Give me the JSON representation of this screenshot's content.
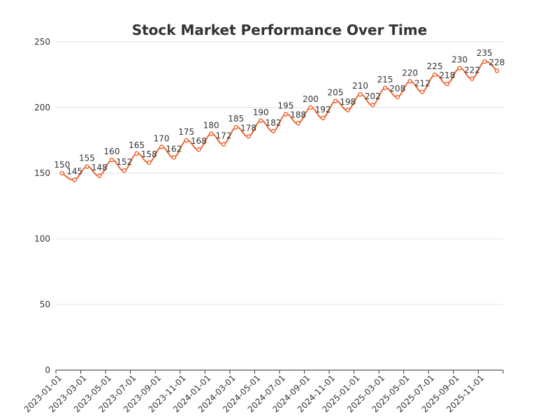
{
  "chart_data": {
    "type": "line",
    "title": "Stock Market Performance Over Time",
    "xlabel": "",
    "ylabel": "",
    "ylim": [
      0,
      250
    ],
    "yticks": [
      0,
      50,
      100,
      150,
      200,
      250
    ],
    "grid": true,
    "legend": "none",
    "line_color": "#ee6633",
    "x": [
      "2023-01-01",
      "2023-02-01",
      "2023-03-01",
      "2023-04-01",
      "2023-05-01",
      "2023-06-01",
      "2023-07-01",
      "2023-08-01",
      "2023-09-01",
      "2023-10-01",
      "2023-11-01",
      "2023-12-01",
      "2024-01-01",
      "2024-02-01",
      "2024-03-01",
      "2024-04-01",
      "2024-05-01",
      "2024-06-01",
      "2024-07-01",
      "2024-08-01",
      "2024-09-01",
      "2024-10-01",
      "2024-11-01",
      "2024-12-01",
      "2025-01-01",
      "2025-02-01",
      "2025-03-01",
      "2025-04-01",
      "2025-05-01",
      "2025-06-01",
      "2025-07-01",
      "2025-08-01",
      "2025-09-01",
      "2025-10-01",
      "2025-11-01",
      "2025-12-01"
    ],
    "xtick_labels": [
      "2023-01-01",
      "2023-03-01",
      "2023-05-01",
      "2023-07-01",
      "2023-09-01",
      "2023-11-01",
      "2024-01-01",
      "2024-03-01",
      "2024-05-01",
      "2024-07-01",
      "2024-09-01",
      "2024-11-01",
      "2025-01-01",
      "2025-03-01",
      "2025-05-01",
      "2025-07-01",
      "2025-09-01",
      "2025-11-01"
    ],
    "values": [
      150,
      145,
      155,
      148,
      160,
      152,
      165,
      158,
      170,
      162,
      175,
      168,
      180,
      172,
      185,
      178,
      190,
      182,
      195,
      188,
      200,
      192,
      205,
      198,
      210,
      202,
      215,
      208,
      220,
      212,
      225,
      218,
      230,
      222,
      235,
      228
    ]
  }
}
